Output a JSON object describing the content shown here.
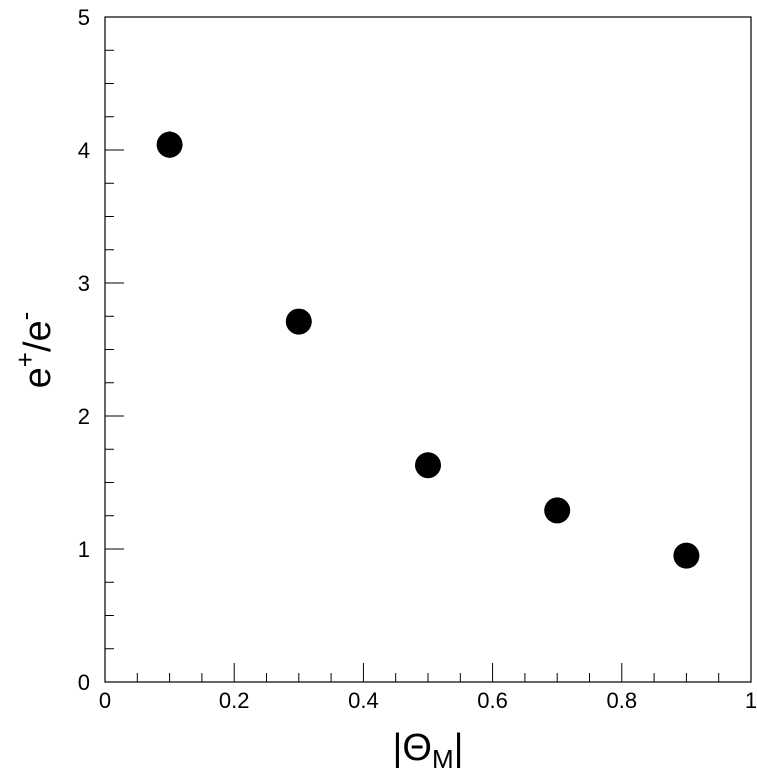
{
  "chart_data": {
    "type": "scatter",
    "title": "",
    "xlabel": {
      "pre": "|Θ",
      "sub": "M",
      "post": "|"
    },
    "ylabel": {
      "base1": "e",
      "sup1": "+",
      "slash": "/",
      "base2": "e",
      "sup2": "-"
    },
    "xlim": [
      0,
      1
    ],
    "ylim": [
      0,
      5
    ],
    "x_ticks": [
      0,
      0.2,
      0.4,
      0.6,
      0.8,
      1
    ],
    "x_tick_labels": [
      "0",
      "0.2",
      "0.4",
      "0.6",
      "0.8",
      "1"
    ],
    "y_ticks": [
      0,
      1,
      2,
      3,
      4,
      5
    ],
    "y_tick_labels": [
      "0",
      "1",
      "2",
      "3",
      "4",
      "5"
    ],
    "x_minor_step": 0.05,
    "y_minor_step": 0.25,
    "grid": false,
    "series": [
      {
        "x": [
          0.1,
          0.3,
          0.5,
          0.7,
          0.9
        ],
        "y": [
          4.04,
          2.71,
          1.63,
          1.29,
          0.95
        ],
        "yerr": [
          0.1,
          0.09,
          0.05,
          0.04,
          0.03
        ],
        "marker": "filled-circle",
        "color": "#000000"
      }
    ]
  }
}
